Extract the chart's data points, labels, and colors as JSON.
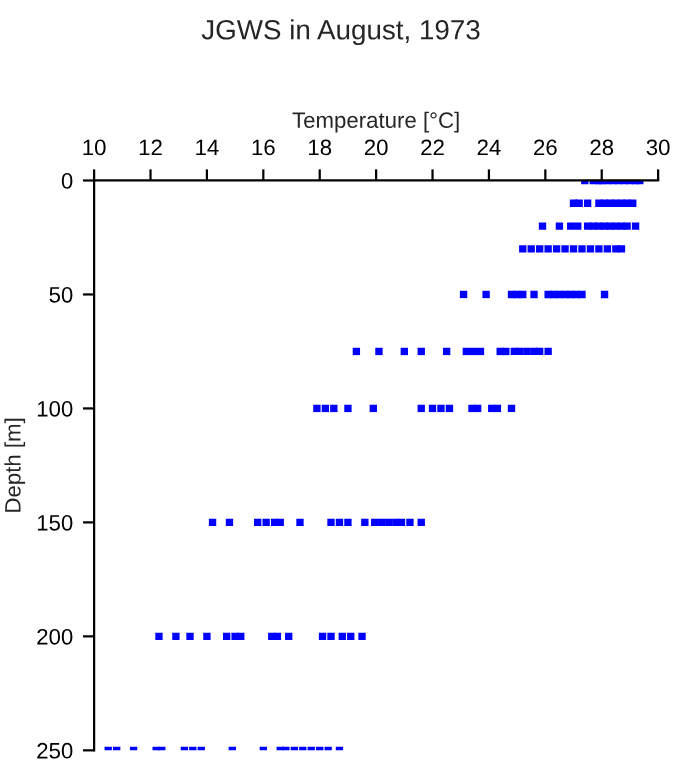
{
  "chart_data": {
    "type": "scatter",
    "title": "JGWS in August, 1973",
    "xlabel": "Temperature [°C]",
    "ylabel": "Depth [m]",
    "series": [
      {
        "color": "#0000ff",
        "x": [
          27.4,
          27.7,
          27.9,
          28.0,
          28.2,
          28.4,
          28.6,
          28.8,
          29.0,
          29.2,
          29.35,
          27.0,
          27.2,
          27.5,
          27.9,
          28.1,
          28.3,
          28.5,
          28.7,
          28.9,
          29.1,
          25.9,
          26.5,
          26.9,
          27.15,
          27.5,
          27.7,
          27.9,
          28.1,
          28.3,
          28.5,
          28.7,
          28.9,
          29.2,
          25.2,
          25.5,
          25.8,
          26.1,
          26.4,
          26.7,
          27.0,
          27.3,
          27.6,
          27.9,
          28.2,
          28.5,
          28.7,
          23.1,
          23.9,
          24.8,
          25.0,
          25.2,
          25.6,
          26.1,
          26.3,
          26.5,
          26.7,
          26.9,
          27.1,
          27.3,
          28.1,
          19.3,
          20.1,
          21.0,
          21.6,
          22.5,
          23.2,
          23.45,
          23.7,
          24.4,
          24.6,
          24.9,
          25.1,
          25.35,
          25.6,
          25.8,
          26.1,
          17.9,
          18.2,
          18.5,
          19.0,
          19.9,
          21.6,
          22.0,
          22.3,
          22.6,
          23.4,
          23.6,
          24.1,
          24.3,
          24.8,
          14.2,
          14.8,
          15.8,
          16.1,
          16.4,
          16.6,
          17.3,
          18.4,
          18.7,
          19.0,
          19.6,
          19.95,
          20.2,
          20.45,
          20.7,
          20.9,
          21.2,
          21.6,
          12.3,
          12.9,
          13.4,
          14.0,
          14.7,
          15.0,
          15.2,
          16.3,
          16.5,
          16.9,
          18.1,
          18.4,
          18.8,
          19.1,
          19.5,
          10.5,
          10.8,
          11.4,
          12.2,
          12.4,
          13.2,
          13.5,
          13.8,
          14.9,
          16.0,
          16.6,
          16.8,
          17.1,
          17.4,
          17.7,
          18.0,
          18.3,
          18.7
        ],
        "values": [
          0,
          0,
          0,
          0,
          0,
          0,
          0,
          0,
          0,
          0,
          0,
          10,
          10,
          10,
          10,
          10,
          10,
          10,
          10,
          10,
          10,
          20,
          20,
          20,
          20,
          20,
          20,
          20,
          20,
          20,
          20,
          20,
          20,
          20,
          30,
          30,
          30,
          30,
          30,
          30,
          30,
          30,
          30,
          30,
          30,
          30,
          30,
          50,
          50,
          50,
          50,
          50,
          50,
          50,
          50,
          50,
          50,
          50,
          50,
          50,
          50,
          75,
          75,
          75,
          75,
          75,
          75,
          75,
          75,
          75,
          75,
          75,
          75,
          75,
          75,
          75,
          75,
          100,
          100,
          100,
          100,
          100,
          100,
          100,
          100,
          100,
          100,
          100,
          100,
          100,
          100,
          150,
          150,
          150,
          150,
          150,
          150,
          150,
          150,
          150,
          150,
          150,
          150,
          150,
          150,
          150,
          150,
          150,
          150,
          200,
          200,
          200,
          200,
          200,
          200,
          200,
          200,
          200,
          200,
          200,
          200,
          200,
          200,
          200,
          250,
          250,
          250,
          250,
          250,
          250,
          250,
          250,
          250,
          250,
          250,
          250,
          250,
          250,
          250,
          250,
          250,
          250
        ]
      }
    ],
    "xlim": [
      10,
      30
    ],
    "xticks": [
      10,
      12,
      14,
      16,
      18,
      20,
      22,
      24,
      26,
      28,
      30
    ],
    "ylim": [
      250,
      0
    ],
    "yticks": [
      0,
      50,
      100,
      150,
      200,
      250
    ],
    "grid": false,
    "marker": "square"
  }
}
